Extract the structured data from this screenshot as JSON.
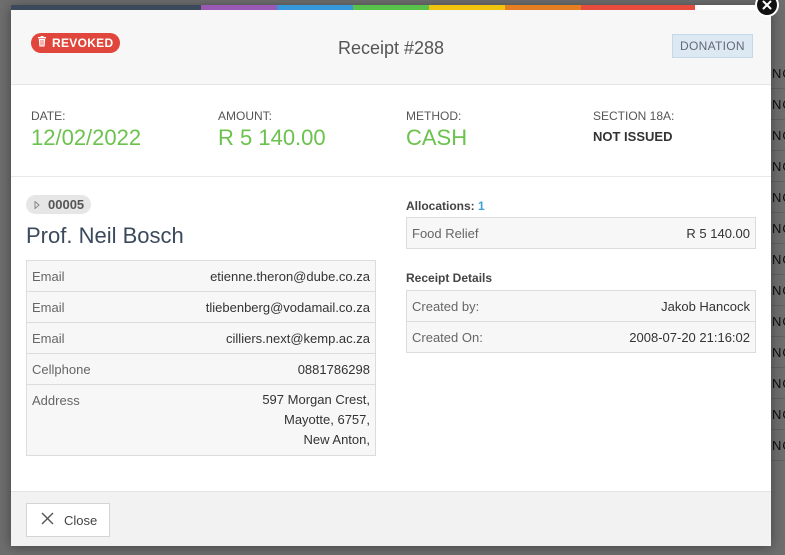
{
  "modal": {
    "status_badge": "REVOKED",
    "title": "Receipt #288",
    "type_badge": "DONATION",
    "color_strip": [
      "#3b4a5a",
      "#9b59b6",
      "#3498db",
      "#58c24a",
      "#f1c40f",
      "#e67e22",
      "#e74c3c"
    ]
  },
  "summary": {
    "date_label": "DATE:",
    "date_value": "12/02/2022",
    "amount_label": "AMOUNT:",
    "amount_value": "R 5 140.00",
    "method_label": "METHOD:",
    "method_value": "CASH",
    "section_label": "SECTION 18A:",
    "section_value": "NOT ISSUED"
  },
  "donor": {
    "reference": "00005",
    "name": "Prof. Neil Bosch",
    "contacts": [
      {
        "label": "Email",
        "value": "etienne.theron@dube.co.za"
      },
      {
        "label": "Email",
        "value": "tliebenberg@vodamail.co.za"
      },
      {
        "label": "Email",
        "value": "cilliers.next@kemp.ac.za"
      },
      {
        "label": "Cellphone",
        "value": "0881786298"
      }
    ],
    "address_label": "Address",
    "address_lines": [
      "597 Morgan Crest,",
      "Mayotte, 6757,",
      "New Anton,"
    ]
  },
  "allocations": {
    "title": "Allocations:",
    "count": "1",
    "items": [
      {
        "label": "Food Relief",
        "value": "R 5 140.00"
      }
    ]
  },
  "receipt_details": {
    "title": "Receipt Details",
    "rows": [
      {
        "label": "Created by:",
        "value": "Jakob Hancock"
      },
      {
        "label": "Created On:",
        "value": "2008-07-20 21:16:02"
      }
    ]
  },
  "footer": {
    "close_label": "Close"
  },
  "background": {
    "row_fragment": "NO"
  }
}
